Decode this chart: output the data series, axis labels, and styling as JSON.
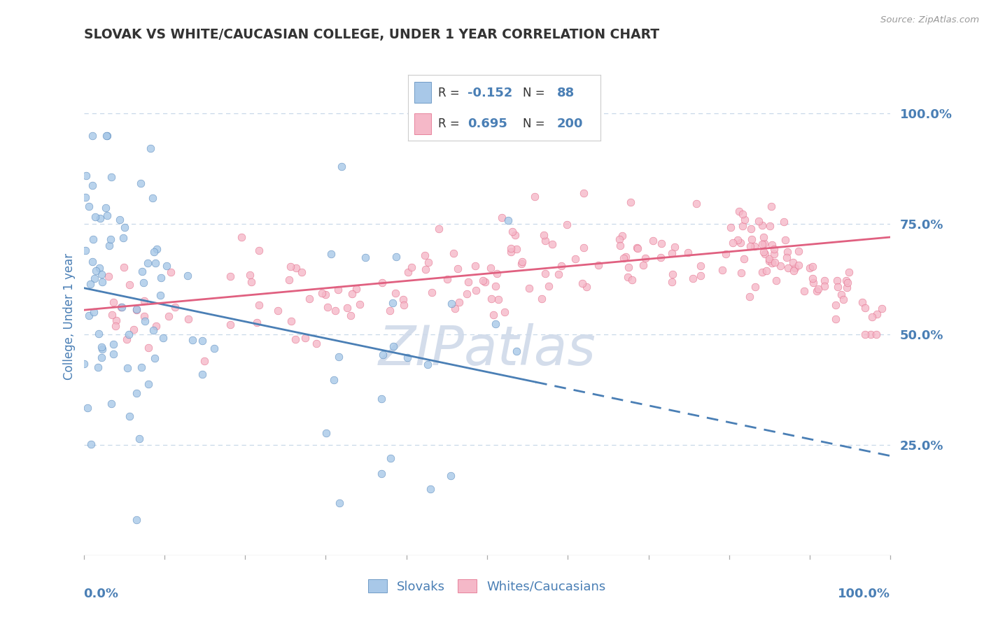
{
  "title": "SLOVAK VS WHITE/CAUCASIAN COLLEGE, UNDER 1 YEAR CORRELATION CHART",
  "source": "Source: ZipAtlas.com",
  "ylabel": "College, Under 1 year",
  "yticks": [
    "25.0%",
    "50.0%",
    "75.0%",
    "100.0%"
  ],
  "ytick_vals": [
    0.25,
    0.5,
    0.75,
    1.0
  ],
  "legend_labels": [
    "Slovaks",
    "Whites/Caucasians"
  ],
  "blue_dot_color": "#a8c8e8",
  "pink_dot_color": "#f5b8c8",
  "blue_line_color": "#4a7fb5",
  "pink_line_color": "#e06080",
  "title_color": "#333333",
  "axis_label_color": "#4a7fb5",
  "watermark_color": "#cdd8e8",
  "background_color": "#ffffff",
  "grid_color": "#c8d8e8",
  "R_slovak": -0.152,
  "N_slovak": 88,
  "R_white": 0.695,
  "N_white": 200,
  "blue_intercept": 0.605,
  "blue_slope": -0.38,
  "pink_intercept": 0.555,
  "pink_slope": 0.165
}
